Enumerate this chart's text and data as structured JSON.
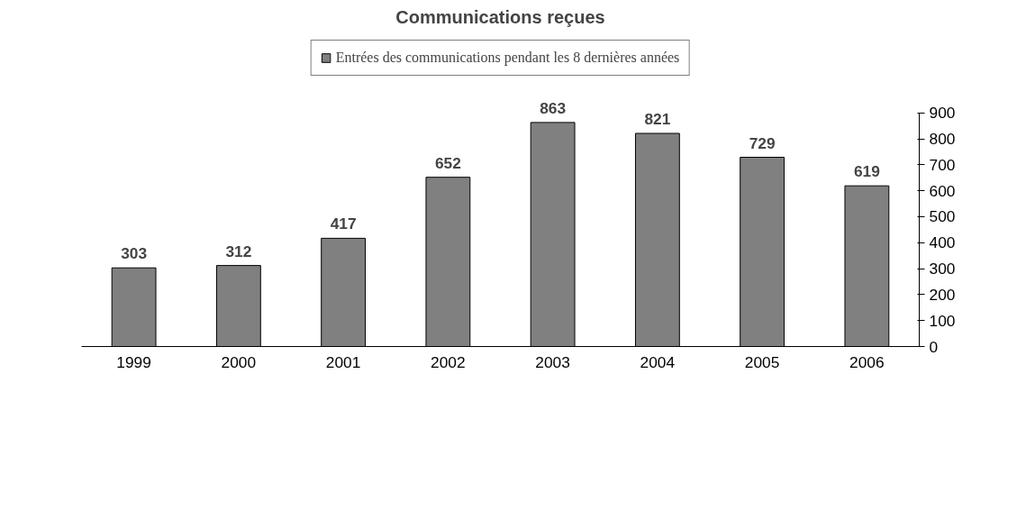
{
  "chart_data": {
    "type": "bar",
    "title": "Communications reçues",
    "categories": [
      "1999",
      "2000",
      "2001",
      "2002",
      "2003",
      "2004",
      "2005",
      "2006"
    ],
    "series": [
      {
        "name": "Entrées des communications pendant les 8 dernières années",
        "color": "#808080",
        "values": [
          303,
          312,
          417,
          652,
          863,
          821,
          729,
          619
        ]
      }
    ],
    "ylim": [
      0,
      900
    ],
    "yticks": [
      0,
      100,
      200,
      300,
      400,
      500,
      600,
      700,
      800,
      900
    ],
    "data_labels": true,
    "legend": "top",
    "grid": false
  }
}
